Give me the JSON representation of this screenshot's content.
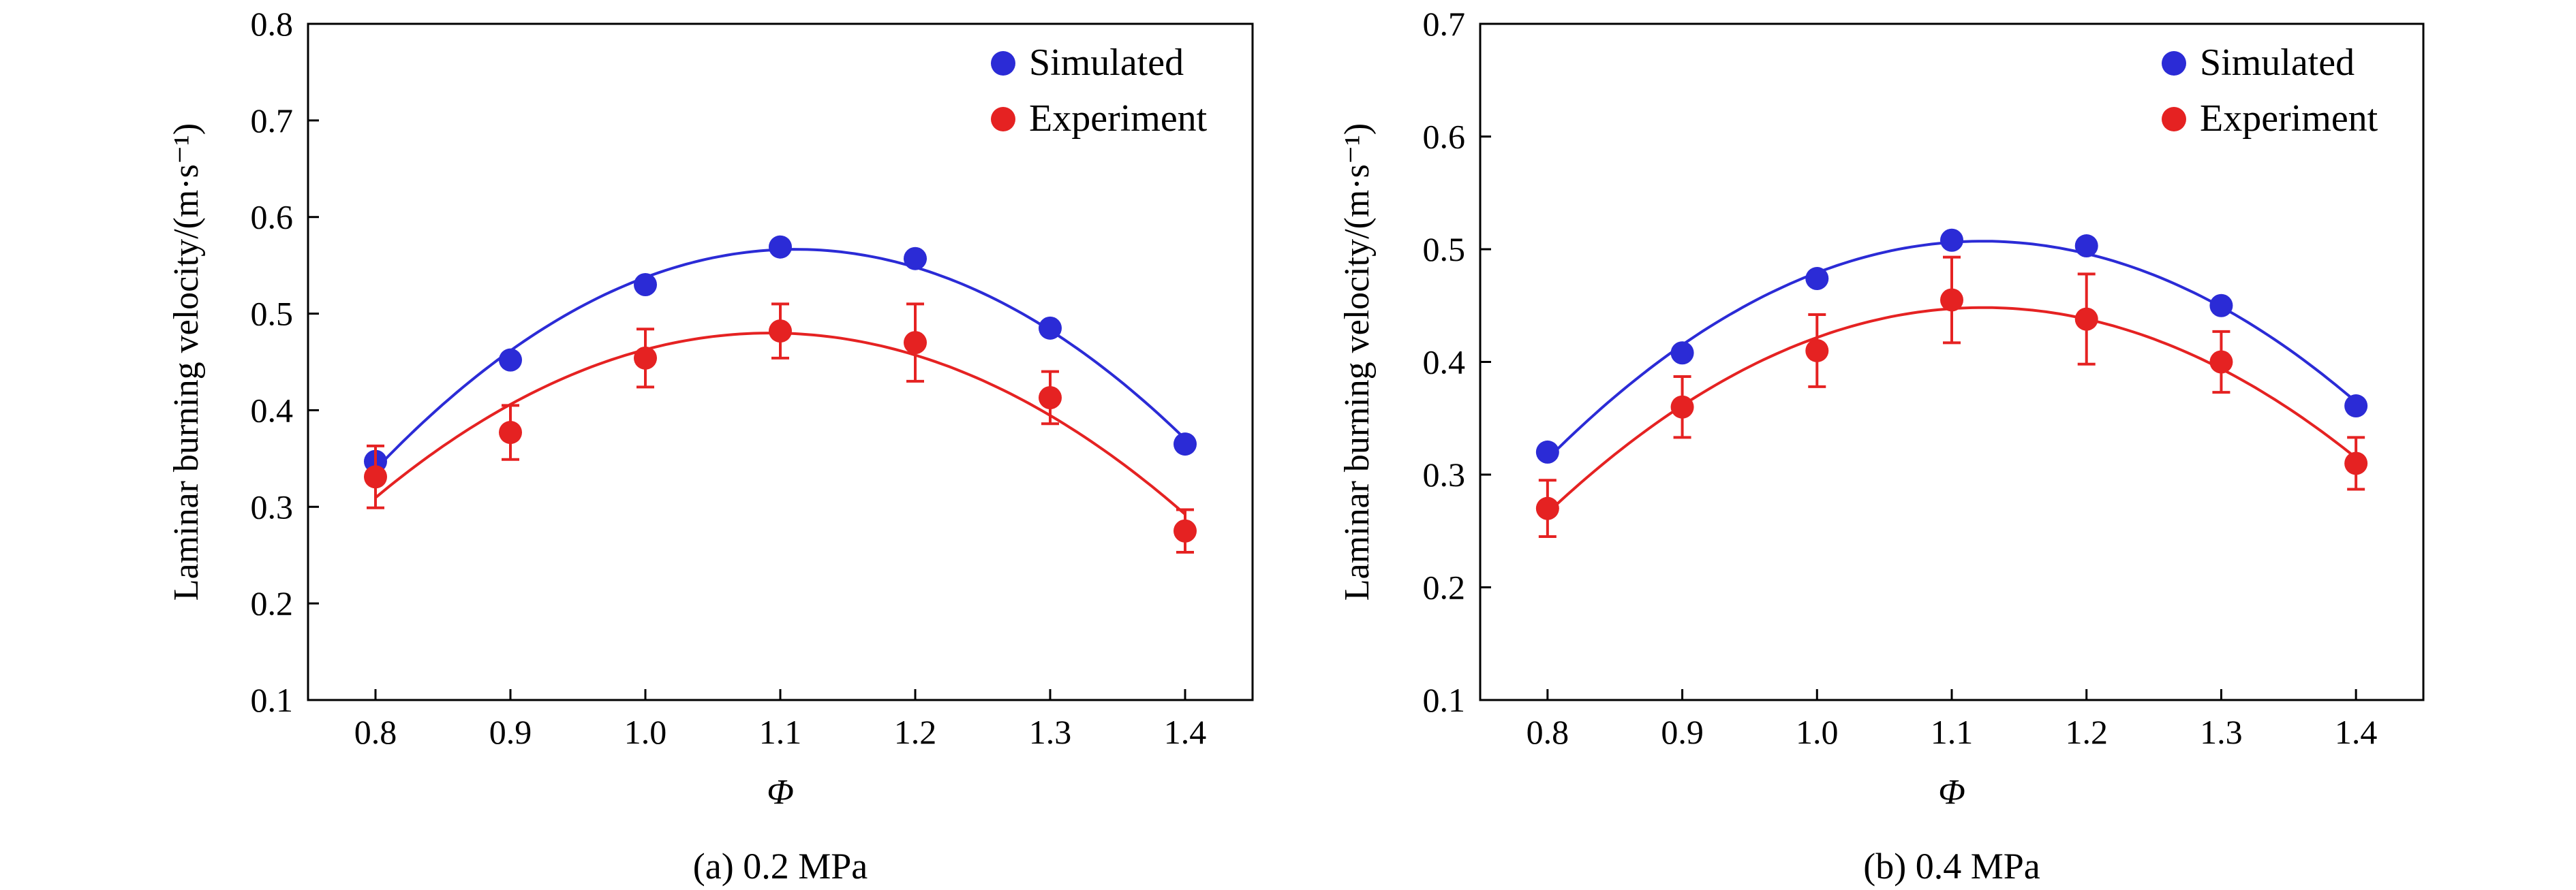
{
  "colors": {
    "simulated": "#2b2bd6",
    "experiment": "#e52222",
    "axis": "#000000"
  },
  "chart_data": [
    {
      "type": "scatter",
      "caption": "(a) 0.2 MPa",
      "xlabel": "Φ",
      "ylabel": "Laminar burning velocity/(m·s⁻¹)",
      "xlim": [
        0.75,
        1.45
      ],
      "ylim": [
        0.1,
        0.8
      ],
      "xticks": [
        "0.8",
        "0.9",
        "1.0",
        "1.1",
        "1.2",
        "1.3",
        "1.4"
      ],
      "yticks": [
        "0.1",
        "0.2",
        "0.3",
        "0.4",
        "0.5",
        "0.6",
        "0.7",
        "0.8"
      ],
      "legend_position": "top-right",
      "x": [
        0.8,
        0.9,
        1.0,
        1.1,
        1.2,
        1.3,
        1.4
      ],
      "series": [
        {
          "name": "Simulated",
          "values": [
            0.347,
            0.452,
            0.53,
            0.569,
            0.557,
            0.485,
            0.365
          ],
          "fit": "quadratic",
          "error": null
        },
        {
          "name": "Experiment",
          "values": [
            0.331,
            0.377,
            0.454,
            0.482,
            0.47,
            0.413,
            0.275
          ],
          "fit": "quadratic",
          "error": [
            0.032,
            0.028,
            0.03,
            0.028,
            0.04,
            0.027,
            0.022
          ]
        }
      ]
    },
    {
      "type": "scatter",
      "caption": "(b) 0.4 MPa",
      "xlabel": "Φ",
      "ylabel": "Laminar burning velocity/(m·s⁻¹)",
      "xlim": [
        0.75,
        1.45
      ],
      "ylim": [
        0.1,
        0.7
      ],
      "xticks": [
        "0.8",
        "0.9",
        "1.0",
        "1.1",
        "1.2",
        "1.3",
        "1.4"
      ],
      "yticks": [
        "0.1",
        "0.2",
        "0.3",
        "0.4",
        "0.5",
        "0.6",
        "0.7"
      ],
      "legend_position": "top-right",
      "x": [
        0.8,
        0.9,
        1.0,
        1.1,
        1.2,
        1.3,
        1.4
      ],
      "series": [
        {
          "name": "Simulated",
          "values": [
            0.32,
            0.408,
            0.474,
            0.508,
            0.503,
            0.45,
            0.361
          ],
          "fit": "quadratic",
          "error": null
        },
        {
          "name": "Experiment",
          "values": [
            0.27,
            0.36,
            0.41,
            0.455,
            0.438,
            0.4,
            0.31
          ],
          "fit": "quadratic",
          "error": [
            0.025,
            0.027,
            0.032,
            0.038,
            0.04,
            0.027,
            0.023
          ]
        }
      ]
    }
  ]
}
